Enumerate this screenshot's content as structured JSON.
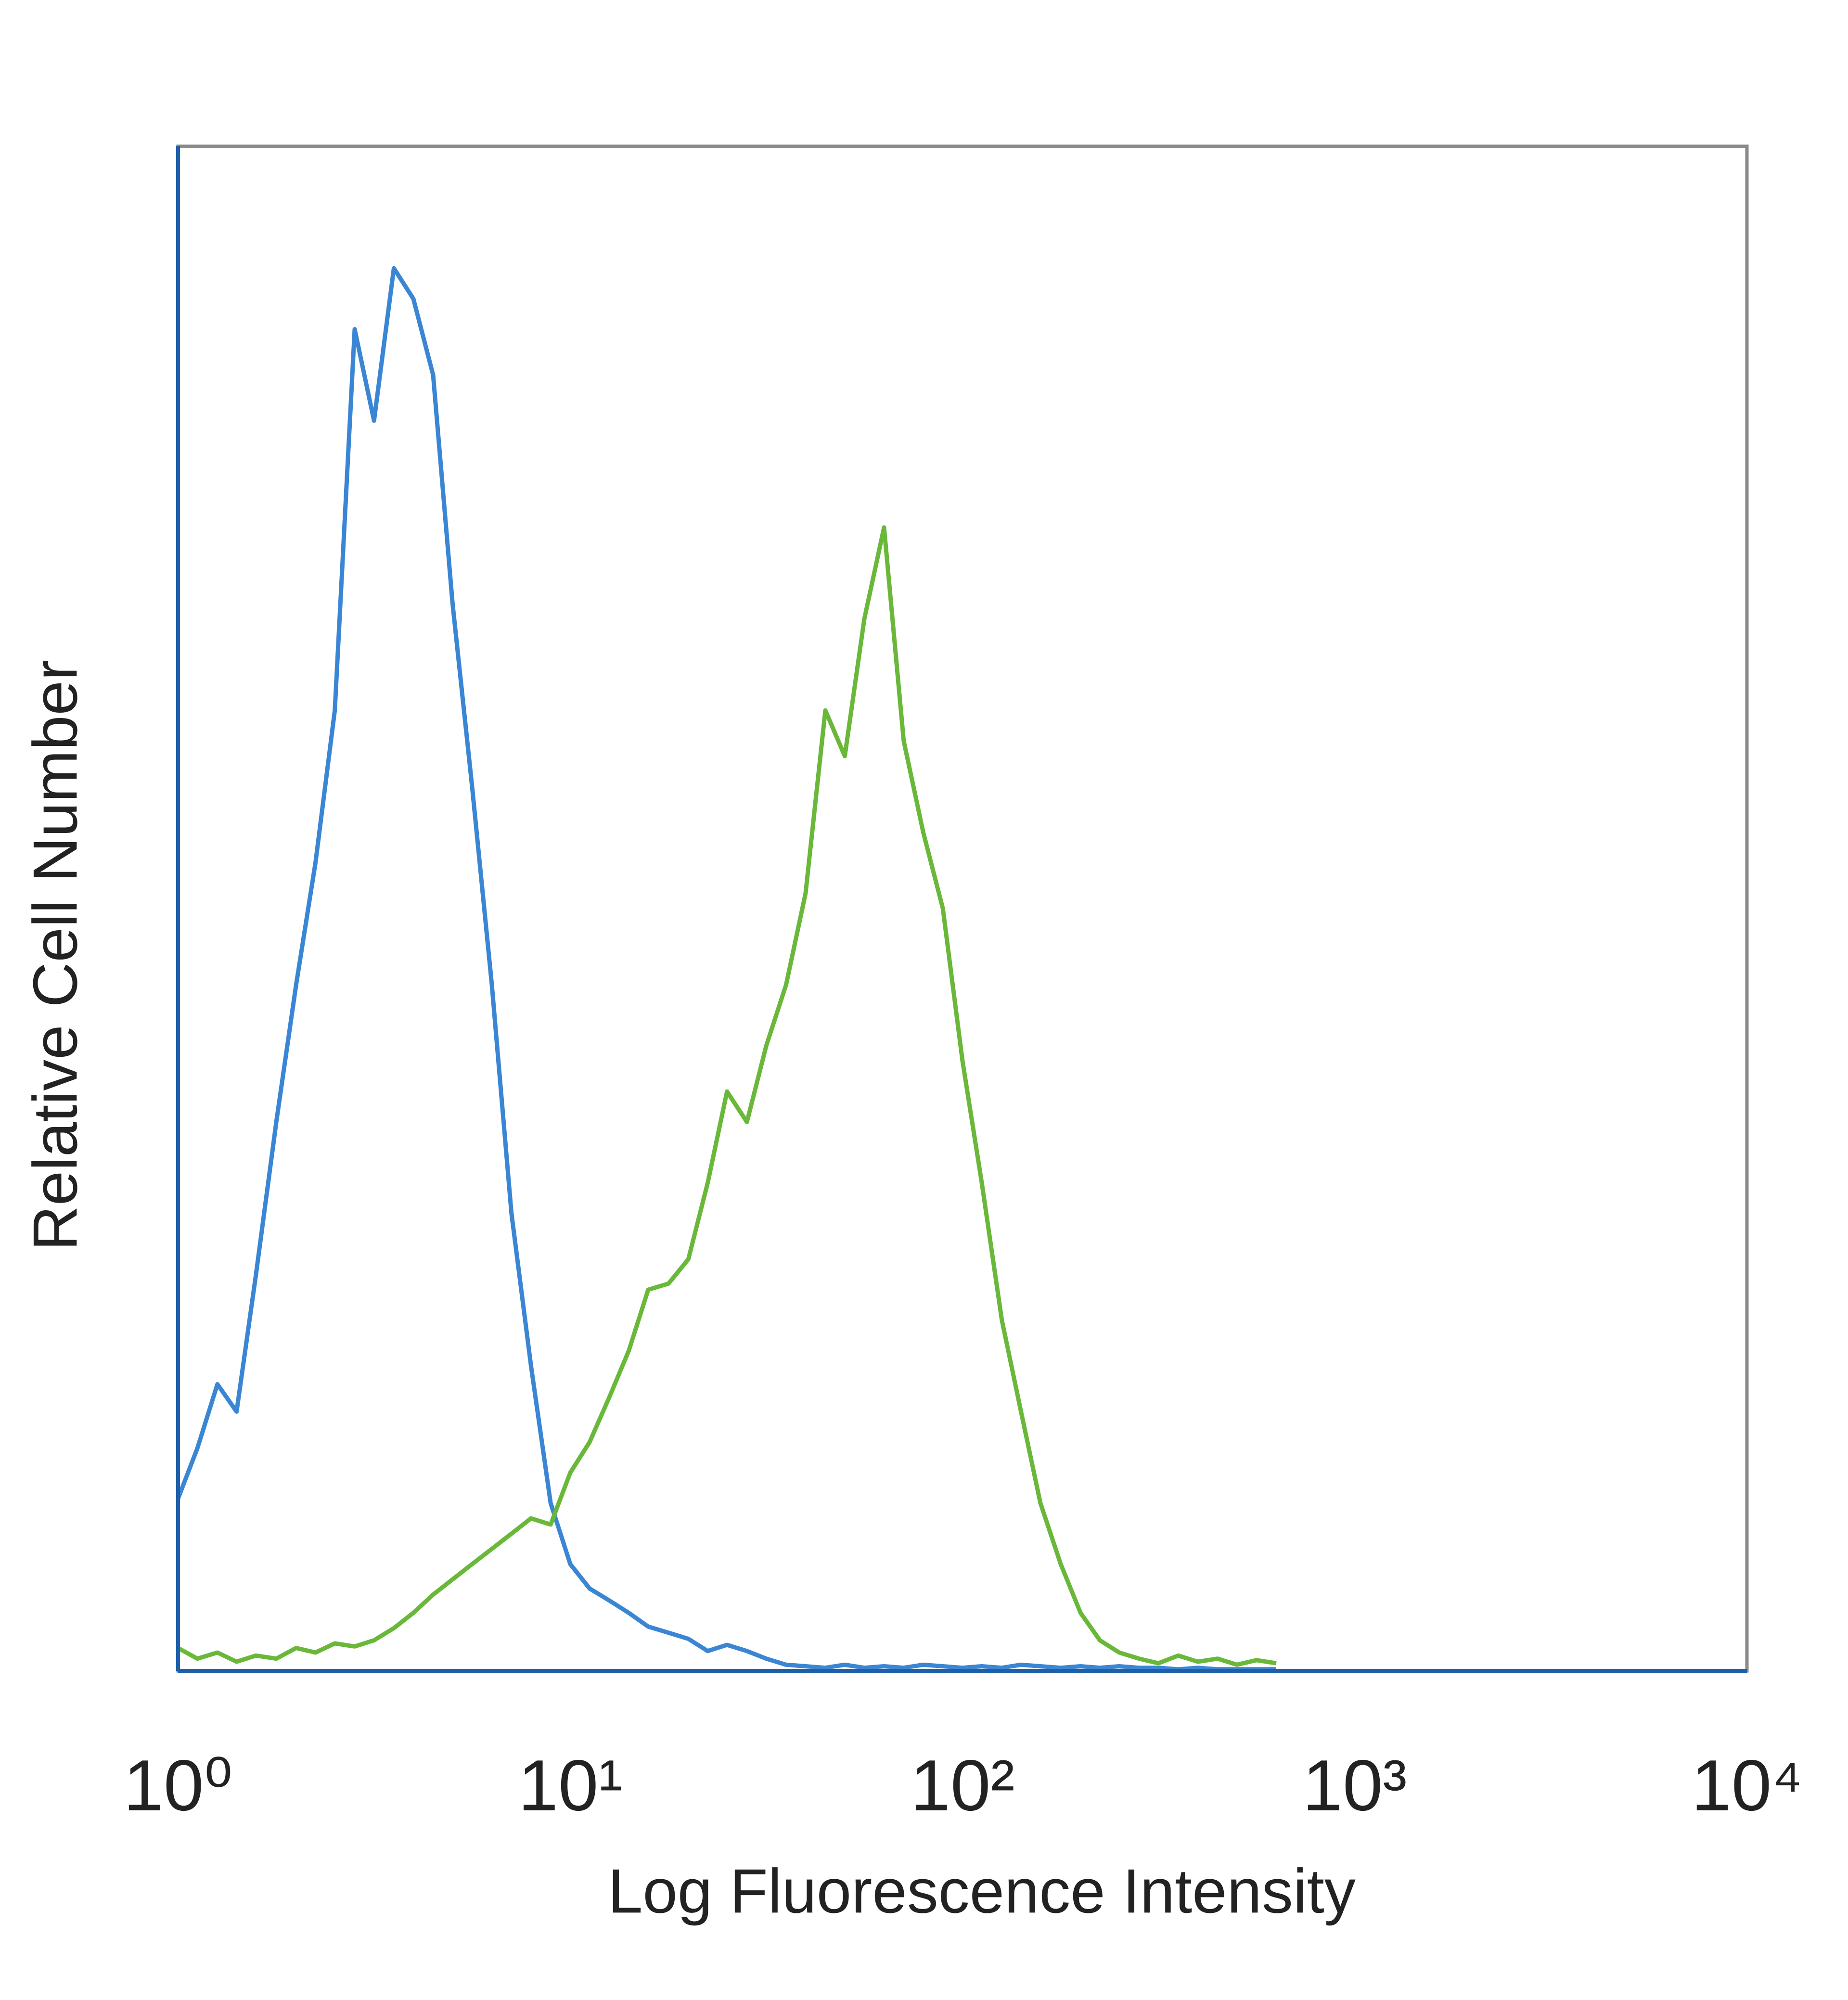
{
  "chart_data": {
    "type": "line",
    "x_label": "Log Fluorescence Intensity",
    "y_label": "Relative Cell Number",
    "x_scale": "log",
    "grid": false,
    "xlim": [
      1,
      10000
    ],
    "ylim": [
      0,
      100
    ],
    "xticks": [
      {
        "value": 1,
        "label": "10⁰"
      },
      {
        "value": 10,
        "label": "10¹"
      },
      {
        "value": 100,
        "label": "10²"
      },
      {
        "value": 1000,
        "label": "10³"
      },
      {
        "value": 10000,
        "label": "10⁴"
      }
    ],
    "x": [
      1,
      1.12,
      1.26,
      1.41,
      1.58,
      1.78,
      2.0,
      2.24,
      2.51,
      2.82,
      3.16,
      3.55,
      3.98,
      4.47,
      5.01,
      5.62,
      6.31,
      7.08,
      7.94,
      8.91,
      10,
      11.2,
      12.6,
      14.1,
      15.8,
      17.8,
      20,
      22.4,
      25.1,
      28.2,
      31.6,
      35.5,
      39.8,
      44.7,
      50.1,
      56.2,
      63.1,
      70.8,
      79.4,
      89.1,
      100,
      112,
      126,
      141,
      158,
      178,
      200,
      224,
      251,
      282,
      316,
      355,
      398,
      447,
      501,
      562,
      631
    ],
    "series": [
      {
        "color": "#3a86d4",
        "values": [
          11.3,
          14.6,
          18.8,
          17,
          26,
          36,
          45,
          53,
          63,
          88,
          82,
          92,
          90,
          85,
          70,
          58,
          45,
          30,
          20,
          11,
          7,
          5.4,
          4.6,
          3.8,
          2.9,
          2.5,
          2.1,
          1.3,
          1.7,
          1.3,
          0.8,
          0.4,
          0.3,
          0.2,
          0.4,
          0.2,
          0.3,
          0.2,
          0.4,
          0.3,
          0.2,
          0.3,
          0.2,
          0.4,
          0.3,
          0.2,
          0.3,
          0.2,
          0.3,
          0.2,
          0.2,
          0.1,
          0.2,
          0.1,
          0.1,
          0.1,
          0.1
        ]
      },
      {
        "color": "#6ab83a",
        "values": [
          1.5,
          0.8,
          1.2,
          0.6,
          1,
          0.8,
          1.5,
          1.2,
          1.8,
          1.6,
          2,
          2.8,
          3.8,
          5,
          6,
          7,
          8,
          9,
          10,
          9.6,
          13,
          15,
          18,
          21,
          25,
          25.4,
          27,
          32,
          38,
          36,
          41,
          45,
          51,
          63,
          60,
          69,
          75,
          61,
          55,
          50,
          40,
          32,
          23,
          17,
          11,
          7,
          3.8,
          2,
          1.2,
          0.8,
          0.5,
          1,
          0.6,
          0.8,
          0.4,
          0.7,
          0.5
        ]
      }
    ]
  }
}
